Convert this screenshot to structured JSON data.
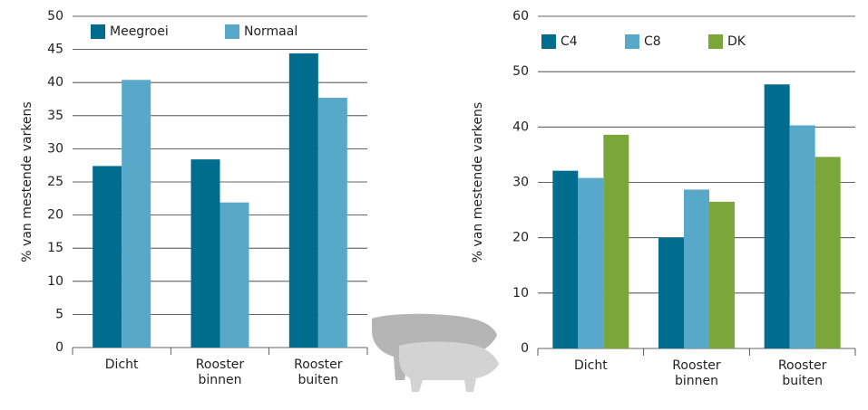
{
  "chart_data": [
    {
      "type": "bar",
      "y_label": "% van mestende varkens",
      "categories": [
        "Dicht",
        "Rooster binnen",
        "Rooster buiten"
      ],
      "series": [
        {
          "name": "Meegroei",
          "color": "#006d8f",
          "values": [
            27.4,
            28.4,
            44.4
          ]
        },
        {
          "name": "Normaal",
          "color": "#58a9c9",
          "values": [
            40.4,
            21.9,
            37.7
          ]
        }
      ],
      "ylim": [
        0,
        50
      ],
      "yticks": [
        0,
        5,
        10,
        15,
        20,
        25,
        30,
        35,
        40,
        45,
        50
      ]
    },
    {
      "type": "bar",
      "y_label": "% van mestende varkens",
      "categories": [
        "Dicht",
        "Rooster binnen",
        "Rooster buiten"
      ],
      "series": [
        {
          "name": "C4",
          "color": "#006d8f",
          "values": [
            32.1,
            20.0,
            47.7
          ]
        },
        {
          "name": "C8",
          "color": "#58a9c9",
          "values": [
            30.8,
            28.7,
            40.3
          ]
        },
        {
          "name": "DK",
          "color": "#7ba63a",
          "values": [
            38.6,
            26.5,
            34.6
          ]
        }
      ],
      "ylim": [
        0,
        60
      ],
      "yticks": [
        0,
        10,
        20,
        30,
        40,
        50,
        60
      ]
    }
  ]
}
